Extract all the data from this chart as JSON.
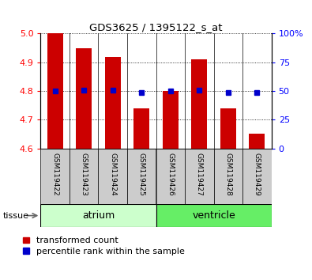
{
  "title": "GDS3625 / 1395122_s_at",
  "samples": [
    "GSM119422",
    "GSM119423",
    "GSM119424",
    "GSM119425",
    "GSM119426",
    "GSM119427",
    "GSM119428",
    "GSM119429"
  ],
  "red_values": [
    5.0,
    4.95,
    4.92,
    4.74,
    4.8,
    4.91,
    4.74,
    4.65
  ],
  "blue_pct": [
    50,
    51,
    51,
    49,
    50,
    51,
    49,
    49
  ],
  "ylim_left": [
    4.6,
    5.0
  ],
  "ylim_right": [
    0,
    100
  ],
  "yticks_left": [
    4.6,
    4.7,
    4.8,
    4.9,
    5.0
  ],
  "yticks_right": [
    0,
    25,
    50,
    75,
    100
  ],
  "groups": [
    {
      "label": "atrium",
      "start": 0,
      "end": 4,
      "color": "#ccffcc"
    },
    {
      "label": "ventricle",
      "start": 4,
      "end": 8,
      "color": "#66ee66"
    }
  ],
  "red_color": "#cc0000",
  "blue_color": "#0000cc",
  "bar_width": 0.55,
  "base_value": 4.6,
  "tissue_label": "tissue",
  "legend_red": "transformed count",
  "legend_blue": "percentile rank within the sample",
  "gray_color": "#cccccc"
}
